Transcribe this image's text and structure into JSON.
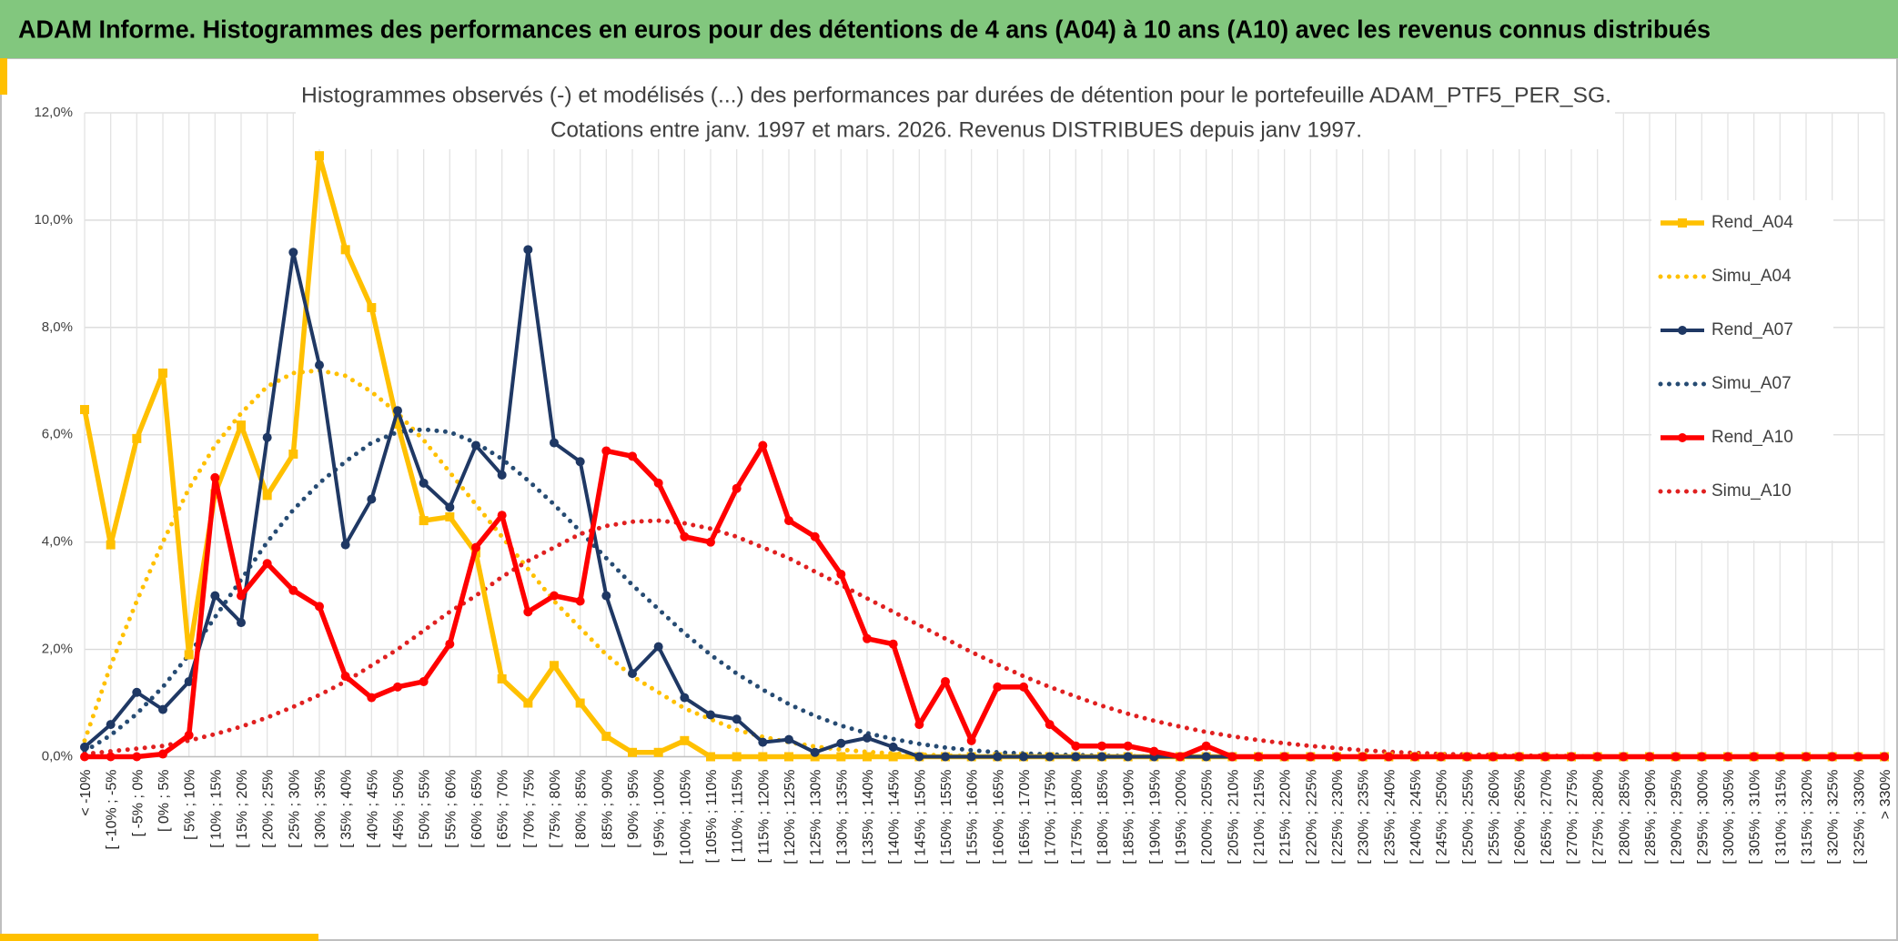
{
  "header": {
    "title": "ADAM Informe. Histogrammes des performances en euros pour des détentions de 4 ans (A04) à 10 ans (A10) avec les revenus connus distribués"
  },
  "chart_data": {
    "type": "line",
    "title": "Histogrammes observés (-) et modélisés (...) des performances par durées de détention pour le portefeuille ADAM_PTF5_PER_SG.",
    "subtitle": "Cotations entre janv. 1997 et mars. 2026. Revenus DISTRIBUES depuis janv 1997.",
    "categories": [
      "< -10%",
      "[ -10% ; -5%",
      "[ -5% ; 0%",
      "[ 0% ; 5%",
      "[ 5% ; 10%",
      "[ 10% ; 15%",
      "[ 15% ; 20%",
      "[ 20% ; 25%",
      "[ 25% ; 30%",
      "[ 30% ; 35%",
      "[ 35% ; 40%",
      "[ 40% ; 45%",
      "[ 45% ; 50%",
      "[ 50% ; 55%",
      "[ 55% ; 60%",
      "[ 60% ; 65%",
      "[ 65% ; 70%",
      "[ 70% ; 75%",
      "[ 75% ; 80%",
      "[ 80% ; 85%",
      "[ 85% ; 90%",
      "[ 90% ; 95%",
      "[ 95% ; 100%",
      "[ 100% ; 105%",
      "[ 105% ; 110%",
      "[ 110% ; 115%",
      "[ 115% ; 120%",
      "[ 120% ; 125%",
      "[ 125% ; 130%",
      "[ 130% ; 135%",
      "[ 135% ; 140%",
      "[ 140% ; 145%",
      "[ 145% ; 150%",
      "[ 150% ; 155%",
      "[ 155% ; 160%",
      "[ 160% ; 165%",
      "[ 165% ; 170%",
      "[ 170% ; 175%",
      "[ 175% ; 180%",
      "[ 180% ; 185%",
      "[ 185% ; 190%",
      "[ 190% ; 195%",
      "[ 195% ; 200%",
      "[ 200% ; 205%",
      "[ 205% ; 210%",
      "[ 210% ; 215%",
      "[ 215% ; 220%",
      "[ 220% ; 225%",
      "[ 225% ; 230%",
      "[ 230% ; 235%",
      "[ 235% ; 240%",
      "[ 240% ; 245%",
      "[ 245% ; 250%",
      "[ 250% ; 255%",
      "[ 255% ; 260%",
      "[ 260% ; 265%",
      "[ 265% ; 270%",
      "[ 270% ; 275%",
      "[ 275% ; 280%",
      "[ 280% ; 285%",
      "[ 285% ; 290%",
      "[ 290% ; 295%",
      "[ 295% ; 300%",
      "[ 300% ; 305%",
      "[ 305% ; 310%",
      "[ 310% ; 315%",
      "[ 315% ; 320%",
      "[ 320% ; 325%",
      "[ 325% ; 330%",
      "> 330%"
    ],
    "series": [
      {
        "name": "Rend_A04",
        "color": "#FFC000",
        "style": "solid",
        "marker": "square",
        "values": [
          6.47,
          3.95,
          5.93,
          7.15,
          1.9,
          4.9,
          6.18,
          4.87,
          5.64,
          11.2,
          9.45,
          8.37,
          6.2,
          4.4,
          4.47,
          3.8,
          1.45,
          1.0,
          1.7,
          1.0,
          0.38,
          0.08,
          0.08,
          0.3,
          0,
          0,
          0,
          0,
          0,
          0,
          0,
          0,
          0,
          0,
          0,
          0,
          0,
          0,
          0,
          0,
          0,
          0,
          0,
          0,
          0,
          0,
          0,
          0,
          0,
          0,
          0,
          0,
          0,
          0,
          0,
          0,
          0,
          0,
          0,
          0,
          0,
          0,
          0,
          0,
          0,
          0,
          0,
          0,
          0,
          0
        ]
      },
      {
        "name": "Simu_A04",
        "color": "#FFC000",
        "style": "dotted",
        "values": [
          0.3,
          1.7,
          2.9,
          4.0,
          5.0,
          5.8,
          6.4,
          6.9,
          7.15,
          7.2,
          7.1,
          6.8,
          6.4,
          5.9,
          5.3,
          4.7,
          4.1,
          3.5,
          2.9,
          2.4,
          1.9,
          1.5,
          1.2,
          0.9,
          0.7,
          0.5,
          0.37,
          0.27,
          0.19,
          0.13,
          0.09,
          0.06,
          0.04,
          0.02,
          0.01,
          0,
          0,
          0,
          0,
          0,
          0,
          0,
          0,
          0,
          0,
          0,
          0,
          0,
          0,
          0,
          0,
          0,
          0,
          0,
          0,
          0,
          0,
          0,
          0,
          0,
          0,
          0,
          0,
          0,
          0,
          0,
          0,
          0,
          0,
          0
        ]
      },
      {
        "name": "Rend_A07",
        "color": "#1F3864",
        "style": "solid",
        "marker": "circle",
        "values": [
          0.18,
          0.6,
          1.2,
          0.88,
          1.4,
          3.0,
          2.5,
          5.95,
          9.4,
          7.3,
          3.95,
          4.8,
          6.45,
          5.1,
          4.65,
          5.8,
          5.25,
          9.45,
          5.85,
          5.5,
          3.0,
          1.55,
          2.05,
          1.1,
          0.78,
          0.7,
          0.27,
          0.32,
          0.08,
          0.25,
          0.35,
          0.18,
          0,
          0,
          0,
          0,
          0,
          0,
          0,
          0,
          0,
          0,
          0,
          0,
          0,
          0,
          0,
          0,
          0,
          0,
          0,
          0,
          0,
          0,
          0,
          0,
          0,
          0,
          0,
          0,
          0,
          0,
          0,
          0,
          0,
          0,
          0,
          0,
          0,
          0
        ]
      },
      {
        "name": "Simu_A07",
        "color": "#264B73",
        "style": "dotted",
        "values": [
          0.1,
          0.4,
          0.8,
          1.3,
          1.9,
          2.6,
          3.3,
          4.0,
          4.6,
          5.1,
          5.5,
          5.85,
          6.05,
          6.1,
          6.05,
          5.85,
          5.55,
          5.15,
          4.7,
          4.2,
          3.7,
          3.2,
          2.75,
          2.3,
          1.9,
          1.55,
          1.25,
          0.98,
          0.76,
          0.58,
          0.44,
          0.33,
          0.24,
          0.17,
          0.12,
          0.08,
          0.06,
          0.04,
          0.03,
          0.02,
          0.01,
          0,
          0,
          0,
          0,
          0,
          0,
          0,
          0,
          0,
          0,
          0,
          0,
          0,
          0,
          0,
          0,
          0,
          0,
          0,
          0,
          0,
          0,
          0,
          0,
          0,
          0,
          0,
          0,
          0
        ]
      },
      {
        "name": "Rend_A10",
        "color": "#FF0000",
        "style": "solid",
        "marker": "circle",
        "values": [
          0,
          0,
          0,
          0.05,
          0.4,
          5.2,
          3.0,
          3.6,
          3.1,
          2.8,
          1.5,
          1.1,
          1.3,
          1.4,
          2.1,
          3.9,
          4.5,
          2.7,
          3.0,
          2.9,
          5.7,
          5.6,
          5.1,
          4.1,
          4.0,
          5.0,
          5.8,
          4.4,
          4.1,
          3.4,
          2.2,
          2.1,
          0.6,
          1.4,
          0.3,
          1.3,
          1.3,
          0.6,
          0.2,
          0.2,
          0.2,
          0.1,
          0,
          0.2,
          0,
          0,
          0,
          0,
          0,
          0,
          0,
          0,
          0,
          0,
          0,
          0,
          0,
          0,
          0,
          0,
          0,
          0,
          0,
          0,
          0,
          0,
          0,
          0,
          0,
          0
        ]
      },
      {
        "name": "Simu_A10",
        "color": "#E02020",
        "style": "dotted",
        "values": [
          0.05,
          0.1,
          0.15,
          0.2,
          0.3,
          0.42,
          0.56,
          0.73,
          0.93,
          1.15,
          1.4,
          1.7,
          2.0,
          2.35,
          2.7,
          3.0,
          3.35,
          3.65,
          3.9,
          4.15,
          4.3,
          4.38,
          4.4,
          4.35,
          4.25,
          4.1,
          3.9,
          3.7,
          3.45,
          3.2,
          2.95,
          2.7,
          2.45,
          2.2,
          1.95,
          1.72,
          1.5,
          1.3,
          1.12,
          0.95,
          0.8,
          0.67,
          0.56,
          0.46,
          0.38,
          0.31,
          0.25,
          0.2,
          0.16,
          0.12,
          0.09,
          0.07,
          0.05,
          0.04,
          0.03,
          0.02,
          0.02,
          0.01,
          0,
          0,
          0,
          0,
          0,
          0,
          0,
          0,
          0,
          0,
          0,
          0
        ]
      }
    ],
    "ylim": [
      0,
      12
    ],
    "yticks": [
      {
        "value": 0,
        "label": "0,0%"
      },
      {
        "value": 2,
        "label": "2,0%"
      },
      {
        "value": 4,
        "label": "4,0%"
      },
      {
        "value": 6,
        "label": "6,0%"
      },
      {
        "value": 8,
        "label": "8,0%"
      },
      {
        "value": 10,
        "label": "10,0%"
      },
      {
        "value": 12,
        "label": "12,0%"
      }
    ],
    "grid": true,
    "legend": "right"
  }
}
